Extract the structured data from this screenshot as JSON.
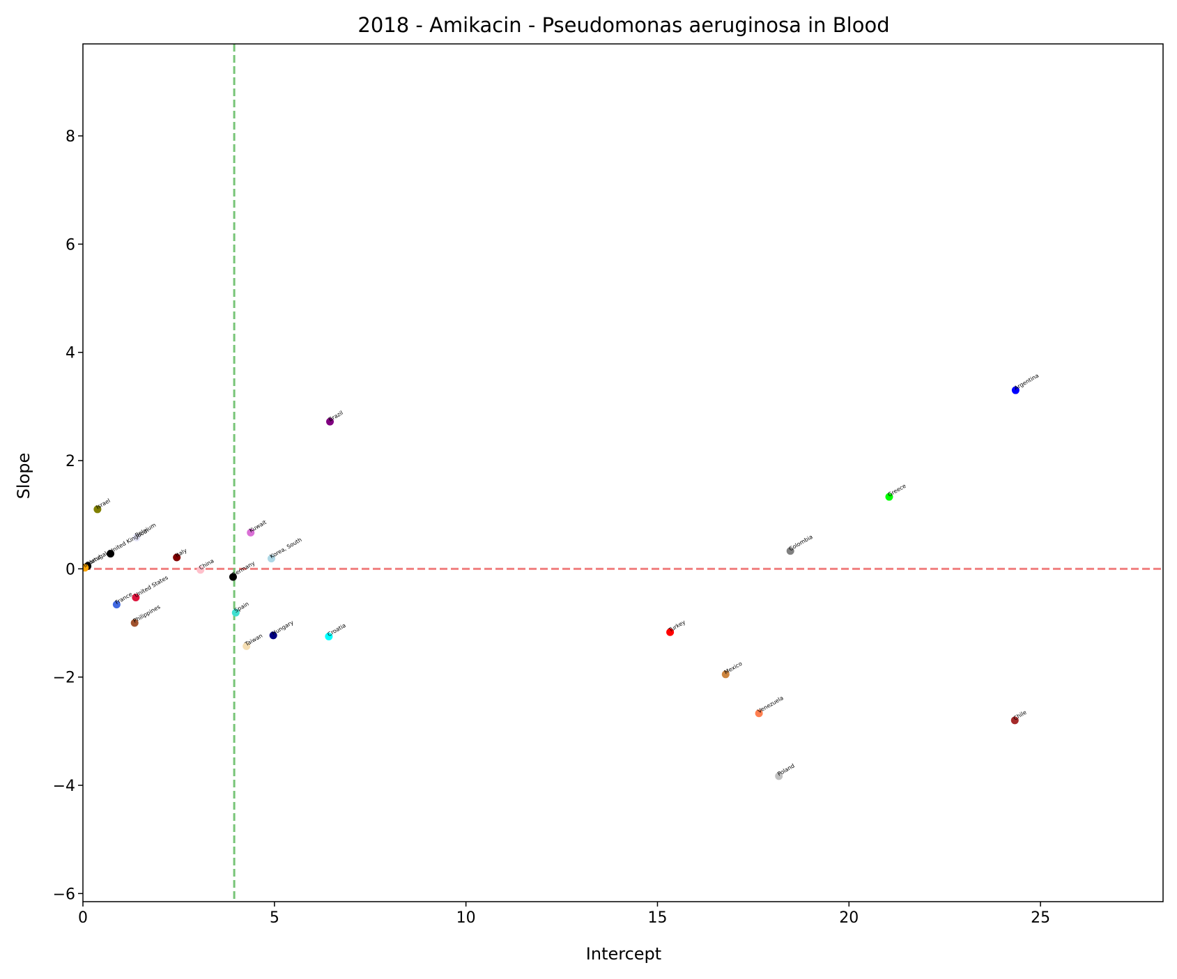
{
  "chart_data": {
    "type": "scatter",
    "title": "2018 - Amikacin - Pseudomonas aeruginosa in Blood",
    "xlabel": "Intercept",
    "ylabel": "Slope",
    "xlim": [
      0,
      28.2
    ],
    "ylim": [
      -6.15,
      9.7
    ],
    "xticks": [
      0,
      5,
      10,
      15,
      20,
      25
    ],
    "yticks": [
      -6,
      -4,
      -2,
      0,
      2,
      4,
      6,
      8
    ],
    "xtick_labels": [
      "0",
      "5",
      "10",
      "15",
      "20",
      "25"
    ],
    "ytick_labels": [
      "−6",
      "−4",
      "−2",
      "0",
      "2",
      "4",
      "6",
      "8"
    ],
    "grid": false,
    "reference_lines": [
      {
        "orientation": "horizontal",
        "value": 0,
        "color": "#f08080",
        "style": "dashed"
      },
      {
        "orientation": "vertical",
        "value": 3.95,
        "color": "#77c477",
        "style": "dashed"
      }
    ],
    "points": [
      {
        "label": "Argentina",
        "x": 24.35,
        "y": 3.3,
        "color": "#0000ff"
      },
      {
        "label": "Brazil",
        "x": 6.45,
        "y": 2.72,
        "color": "#800080"
      },
      {
        "label": "Greece",
        "x": 21.05,
        "y": 1.33,
        "color": "#00ff00"
      },
      {
        "label": "Israel",
        "x": 0.38,
        "y": 1.1,
        "color": "#808000"
      },
      {
        "label": "Kuwait",
        "x": 4.38,
        "y": 0.67,
        "color": "#da70d6"
      },
      {
        "label": "Belgium",
        "x": 1.4,
        "y": 0.58,
        "color": "#e6e6fa"
      },
      {
        "label": "United Kingdom",
        "x": 0.72,
        "y": 0.28,
        "color": "#000000"
      },
      {
        "label": "Colombia",
        "x": 18.47,
        "y": 0.33,
        "color": "#808080"
      },
      {
        "label": "Korea, South",
        "x": 4.92,
        "y": 0.19,
        "color": "#add8e6"
      },
      {
        "label": "Italy",
        "x": 2.45,
        "y": 0.21,
        "color": "#800000"
      },
      {
        "label": "China",
        "x": 3.07,
        "y": -0.02,
        "color": "#ffc0cb"
      },
      {
        "label": "Germany",
        "x": 3.92,
        "y": -0.15,
        "color": "#000000"
      },
      {
        "label": "United States",
        "x": 1.38,
        "y": -0.53,
        "color": "#dc143c"
      },
      {
        "label": "France",
        "x": 0.88,
        "y": -0.66,
        "color": "#4169e1"
      },
      {
        "label": "Spain",
        "x": 3.99,
        "y": -0.81,
        "color": "#40e0d0"
      },
      {
        "label": "Philippines",
        "x": 1.35,
        "y": -1.0,
        "color": "#a0522d"
      },
      {
        "label": "Turkey",
        "x": 15.33,
        "y": -1.17,
        "color": "#ff0000"
      },
      {
        "label": "Hungary",
        "x": 4.97,
        "y": -1.23,
        "color": "#000080"
      },
      {
        "label": "Croatia",
        "x": 6.42,
        "y": -1.25,
        "color": "#00ffff"
      },
      {
        "label": "Taiwan",
        "x": 4.27,
        "y": -1.43,
        "color": "#f5deb3"
      },
      {
        "label": "Mexico",
        "x": 16.78,
        "y": -1.95,
        "color": "#cd853f"
      },
      {
        "label": "Venezuela",
        "x": 17.65,
        "y": -2.67,
        "color": "#ff7f50"
      },
      {
        "label": "Chile",
        "x": 24.33,
        "y": -2.8,
        "color": "#a52a2a"
      },
      {
        "label": "Poland",
        "x": 18.17,
        "y": -3.83,
        "color": "#c0c0c0"
      },
      {
        "label": "Portugal",
        "x": 0.12,
        "y": 0.05,
        "color": "#000000"
      },
      {
        "label": "Ireland",
        "x": 0.05,
        "y": 0.02,
        "color": "#ffa500"
      }
    ]
  }
}
